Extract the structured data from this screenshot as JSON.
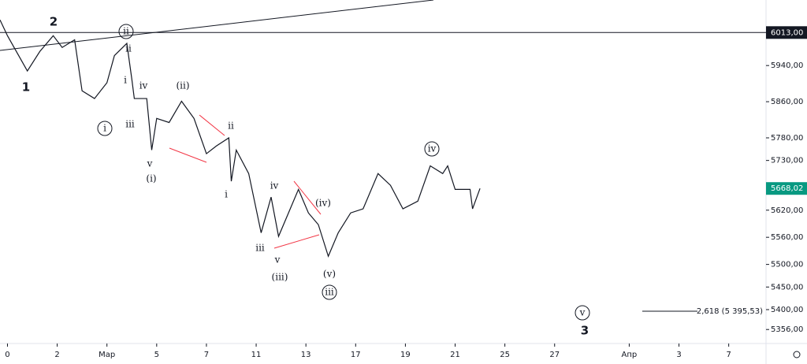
{
  "chart_data": {
    "type": "line",
    "color": "#131722",
    "x": [
      -0.3,
      0,
      0.8,
      1.3,
      1.84,
      2.2,
      2.7,
      3.0,
      3.5,
      4.0,
      4.3,
      4.8,
      5.0,
      5.1,
      5.6,
      5.8,
      6.0,
      6.5,
      7.0,
      7.5,
      8.0,
      8.4,
      8.9,
      9.0,
      9.2,
      9.7,
      10.2,
      10.6,
      10.9,
      11.3,
      11.7,
      12.1,
      12.5,
      12.9,
      13.3,
      13.8,
      14.3,
      14.9,
      15.4,
      15.9,
      16.5,
      17.0,
      17.5,
      17.7,
      18.0,
      18.6,
      18.7,
      19.0
    ],
    "values": [
      6041,
      6006,
      5928,
      5971,
      6006,
      5980,
      5997,
      5884,
      5867,
      5902,
      5962,
      5989,
      5910,
      5867,
      5867,
      5753,
      5823,
      5814,
      5861,
      5823,
      5745,
      5762,
      5780,
      5684,
      5753,
      5701,
      5570,
      5649,
      5562,
      5614,
      5666,
      5614,
      5588,
      5518,
      5570,
      5614,
      5623,
      5701,
      5675,
      5623,
      5640,
      5718,
      5701,
      5718,
      5666,
      5666,
      5623,
      5668.02
    ],
    "xlim": [
      -0.3,
      30.5
    ],
    "xticks": [
      0,
      2,
      {
        "value": 4,
        "label": "Мар"
      },
      {
        "value": 6,
        "label": "5"
      },
      {
        "value": 8,
        "label": "7"
      },
      {
        "value": 10,
        "label": "11"
      },
      {
        "value": 12,
        "label": "13"
      },
      {
        "value": 14,
        "label": "17"
      },
      {
        "value": 16,
        "label": "19"
      },
      {
        "value": 18,
        "label": "21"
      },
      {
        "value": 20,
        "label": "25"
      },
      {
        "value": 22,
        "label": "27"
      },
      {
        "value": 25,
        "label": "Апр"
      },
      {
        "value": 27,
        "label": "3"
      },
      {
        "value": 29,
        "label": "7"
      }
    ],
    "ylim": [
      5325,
      6085
    ],
    "yticks": [
      {
        "value": 5356,
        "label": "5356,00"
      },
      {
        "value": 5400,
        "label": "5400,00"
      },
      {
        "value": 5450,
        "label": "5450,00"
      },
      {
        "value": 5500,
        "label": "5500,00"
      },
      {
        "value": 5560,
        "label": "5560,00"
      },
      {
        "value": 5620,
        "label": "5620,00"
      },
      {
        "value": 5730,
        "label": "5730,00"
      },
      {
        "value": 5780,
        "label": "5780,00"
      },
      {
        "value": 5860,
        "label": "5860,00"
      },
      {
        "value": 5940,
        "label": "5940,00"
      }
    ],
    "level": {
      "value": 6013,
      "label": "6013,00"
    },
    "last": {
      "value": 5668.02,
      "label": "5668,02"
    },
    "fib_label": "2,618 (5 395,53)",
    "annotations": [
      "2",
      "1",
      "ii",
      "ii",
      "i",
      "iv",
      "(ii)",
      "i",
      "iii",
      "v",
      "(i)",
      "ii",
      "i",
      "iv",
      "(iv)",
      "iii",
      "v",
      "(iii)",
      "(v)",
      "iii",
      "iv",
      "v",
      "3"
    ]
  }
}
